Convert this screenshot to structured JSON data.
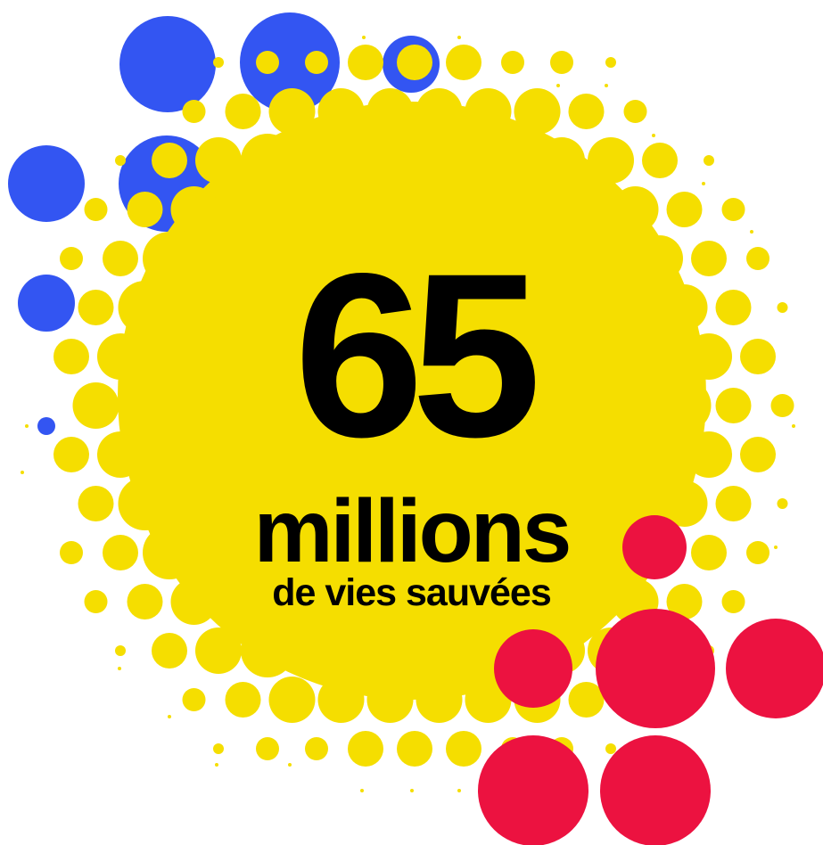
{
  "headline": {
    "number": "65",
    "unit": "millions",
    "caption": "de vies sauvées"
  },
  "colors": {
    "yellow": "#F5DE00",
    "blue": "#3355F2",
    "red": "#EC1240",
    "text": "#000000",
    "background": "#FFFFFF"
  }
}
